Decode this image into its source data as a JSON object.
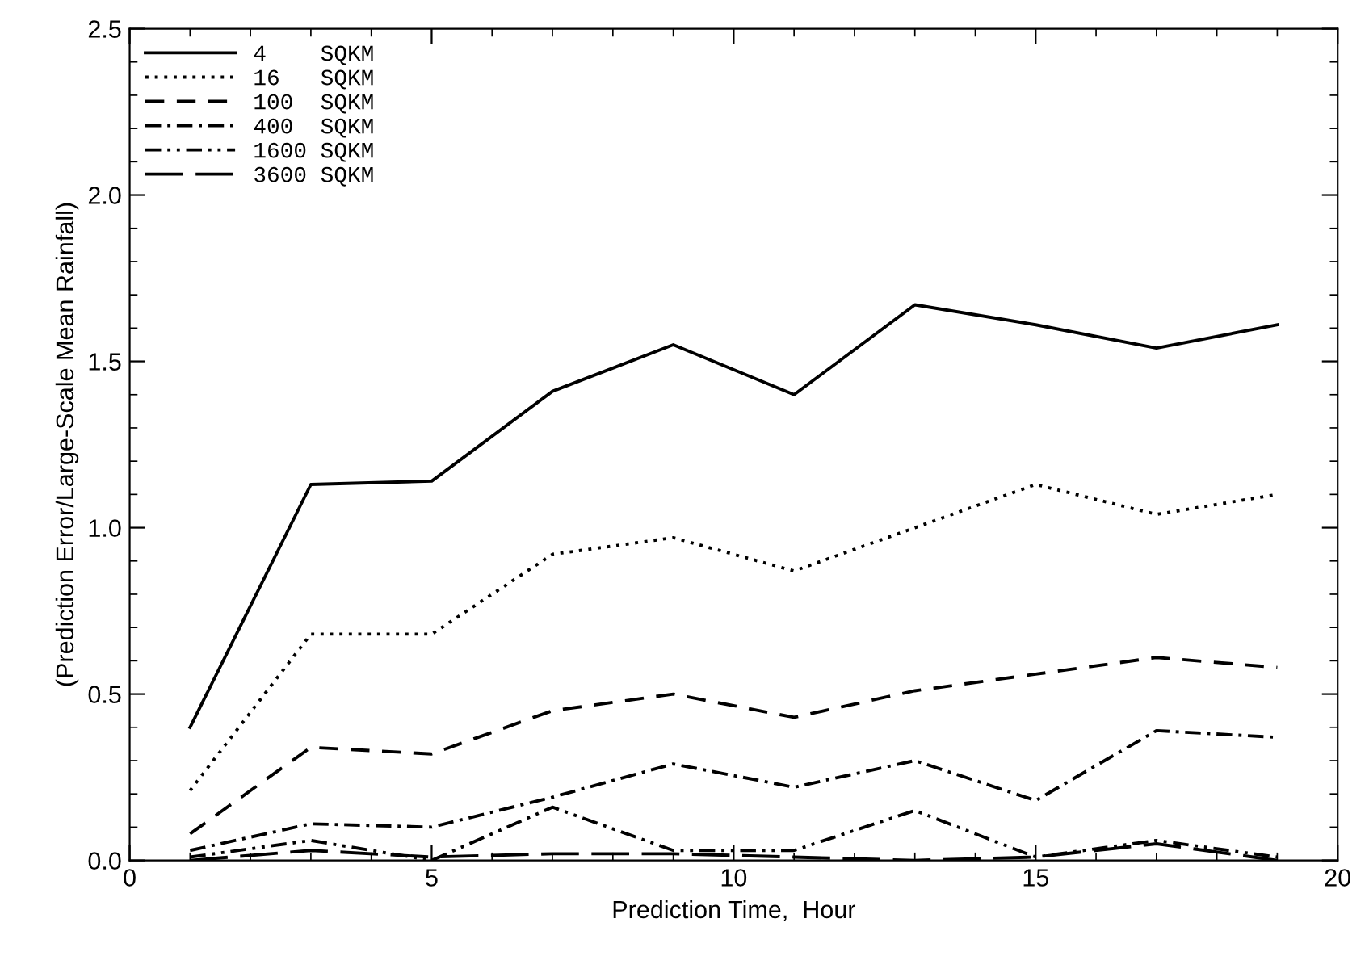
{
  "chart_data": {
    "type": "line",
    "xlabel": "Prediction Time,  Hour",
    "ylabel": "(Prediction Error/Large-Scale Mean Rainfall)",
    "x": [
      1,
      3,
      5,
      7,
      9,
      11,
      13,
      15,
      17,
      19
    ],
    "series": [
      {
        "name": "4    SQKM",
        "color": "#000000",
        "line_style": "solid",
        "values": [
          0.4,
          1.13,
          1.14,
          1.41,
          1.55,
          1.4,
          1.67,
          1.61,
          1.54,
          1.61
        ]
      },
      {
        "name": "16   SQKM",
        "color": "#000000",
        "line_style": "dotted",
        "values": [
          0.21,
          0.68,
          0.68,
          0.92,
          0.97,
          0.87,
          1.0,
          1.13,
          1.04,
          1.1
        ]
      },
      {
        "name": "100  SQKM",
        "color": "#000000",
        "line_style": "dashed",
        "values": [
          0.08,
          0.34,
          0.32,
          0.45,
          0.5,
          0.43,
          0.51,
          0.56,
          0.61,
          0.58
        ]
      },
      {
        "name": "400  SQKM",
        "color": "#000000",
        "line_style": "dashdot",
        "values": [
          0.03,
          0.11,
          0.1,
          0.19,
          0.29,
          0.22,
          0.3,
          0.18,
          0.39,
          0.37
        ]
      },
      {
        "name": "1600 SQKM",
        "color": "#000000",
        "line_style": "dashdotdot",
        "values": [
          0.01,
          0.06,
          0.0,
          0.16,
          0.03,
          0.03,
          0.15,
          0.01,
          0.06,
          0.01
        ]
      },
      {
        "name": "3600 SQKM",
        "color": "#000000",
        "line_style": "longdash",
        "values": [
          0.0,
          0.03,
          0.01,
          0.02,
          0.02,
          0.01,
          0.0,
          0.01,
          0.05,
          0.0
        ]
      }
    ],
    "xlim": [
      0,
      20
    ],
    "xticks": [
      0,
      5,
      10,
      15,
      20
    ],
    "ylim": [
      0,
      2.5
    ],
    "yticks": [
      {
        "value": 0,
        "label": "0.0"
      },
      {
        "value": 0.5,
        "label": "0.5"
      },
      {
        "value": 1.0,
        "label": "1.0"
      },
      {
        "value": 1.5,
        "label": "1.5"
      },
      {
        "value": 2.0,
        "label": "2.0"
      },
      {
        "value": 2.5,
        "label": "2.5"
      }
    ],
    "grid": false,
    "legend": "top left",
    "marker": "none"
  }
}
